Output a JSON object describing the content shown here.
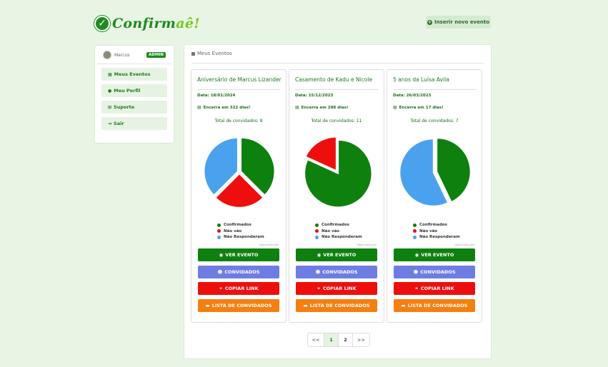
{
  "app": {
    "logo_main": "Confirm",
    "logo_accent": "aê!",
    "new_event_label": "Inserir novo evento"
  },
  "sidebar": {
    "user_name": "Marcus",
    "badge": "ADMIN",
    "items": [
      {
        "label": "Meus Eventos",
        "icon": "list-icon"
      },
      {
        "label": "Meu Perfil",
        "icon": "user-icon"
      },
      {
        "label": "Suporte",
        "icon": "plus-square-icon"
      },
      {
        "label": "Sair",
        "icon": "logout-icon"
      }
    ]
  },
  "main": {
    "title": "Meus Eventos"
  },
  "colors": {
    "confirmed": "#0e800e",
    "declined": "#ee0e0e",
    "no_response": "#4aa2ee"
  },
  "legend": {
    "confirmed": "Confirmados",
    "declined": "Não vão",
    "no_response": "Não Responderam"
  },
  "buttons": {
    "ver": "VER EVENTO",
    "convidados": "CONVIDADOS",
    "copiar": "COPIAR LINK",
    "lista": "LISTA DE CONVIDADOS"
  },
  "credits": "Highcharts.com",
  "events": [
    {
      "title": "Aniversário de Marcus Lizander",
      "date": "Data: 18/01/2024",
      "ends": "Encerra em 322 dias!",
      "total": "Total de convidados: 8"
    },
    {
      "title": "Casamento de Kadu e Nicole",
      "date": "Data: 15/12/2023",
      "ends": "Encerra em 288 dias!",
      "total": "Total de convidados: 11"
    },
    {
      "title": "5 anos da Luísa Avila",
      "date": "Data: 26/03/2023",
      "ends": "Encerra em 17 dias!",
      "total": "Total de convidados: 7"
    }
  ],
  "chart_data": [
    {
      "type": "pie",
      "categories": [
        "Confirmados",
        "Não vão",
        "Não Responderam"
      ],
      "values": [
        3,
        2,
        3
      ]
    },
    {
      "type": "pie",
      "categories": [
        "Confirmados",
        "Não vão",
        "Não Responderam"
      ],
      "values": [
        9,
        2,
        0
      ]
    },
    {
      "type": "pie",
      "categories": [
        "Confirmados",
        "Não vão",
        "Não Responderam"
      ],
      "values": [
        3,
        0,
        4
      ]
    }
  ],
  "pagination": {
    "prev": "<<",
    "pages": [
      "1",
      "2"
    ],
    "next": ">>",
    "active": "1"
  }
}
